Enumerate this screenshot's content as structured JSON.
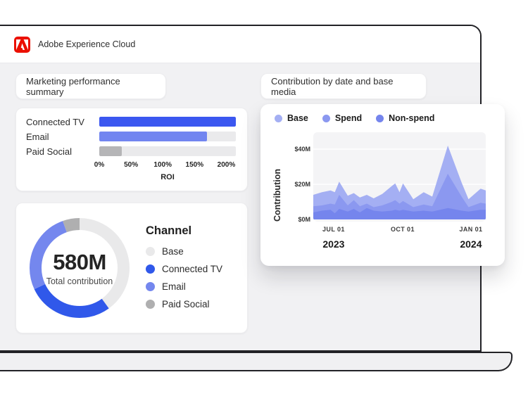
{
  "app": {
    "title": "Adobe Experience Cloud"
  },
  "panels": {
    "left_title": "Marketing performance summary",
    "right_title": "Contribution by date and base media"
  },
  "chart_data": [
    {
      "id": "roi-by-channel",
      "type": "bar",
      "orientation": "horizontal",
      "categories": [
        "Connected TV",
        "Email",
        "Paid Social"
      ],
      "values": [
        215,
        170,
        35
      ],
      "value_unit": "% ROI",
      "xlabel": "ROI",
      "xlim": [
        0,
        215
      ],
      "x_tick_values": [
        0,
        50,
        100,
        150,
        200
      ],
      "x_tick_labels": [
        "0%",
        "50%",
        "100%",
        "150%",
        "200%"
      ],
      "bar_colors": [
        "#3B57F0",
        "#7285F0",
        "#B5B5B7"
      ],
      "track_color": "#EAEAEC",
      "grid": false
    },
    {
      "id": "total-contribution-donut",
      "type": "pie",
      "title": "Channel",
      "center_value": "580M",
      "center_label": "Total contribution",
      "legend_position": "right",
      "slices": [
        {
          "label": "Base",
          "percent": 40.0,
          "color": "#E9E9EA"
        },
        {
          "label": "Connected TV",
          "percent": 28.0,
          "color": "#3058EA"
        },
        {
          "label": "Email",
          "percent": 26.5,
          "color": "#7487EE"
        },
        {
          "label": "Paid Social",
          "percent": 5.5,
          "color": "#AFAFB0"
        }
      ]
    },
    {
      "id": "contribution-by-date",
      "type": "area",
      "stacked": true,
      "ylabel": "Contribution",
      "ylim": [
        0,
        48
      ],
      "y_tick_values": [
        0,
        20,
        40
      ],
      "y_tick_labels": [
        "$0M",
        "$20M",
        "$40M"
      ],
      "x_ticks": [
        {
          "label": "JUL 01",
          "pos": 0.118
        },
        {
          "label": "OCT 01",
          "pos": 0.518
        },
        {
          "label": "JAN 01",
          "pos": 0.914
        }
      ],
      "year_labels": [
        {
          "label": "2023",
          "pos": 0.118
        },
        {
          "label": "2024",
          "pos": 0.914
        }
      ],
      "grid": true,
      "legend_position": "top-left",
      "x": [
        0,
        0.05,
        0.1,
        0.125,
        0.15,
        0.2,
        0.235,
        0.27,
        0.31,
        0.35,
        0.4,
        0.455,
        0.475,
        0.5,
        0.52,
        0.58,
        0.64,
        0.69,
        0.78,
        0.86,
        0.9,
        0.97,
        1.0
      ],
      "series": [
        {
          "name": "Non-spend",
          "color": "#7585ED",
          "values": [
            4,
            5,
            5.5,
            3.5,
            6,
            4.5,
            6,
            4,
            6.5,
            5,
            4.5,
            5,
            5.5,
            5,
            5.5,
            4.5,
            5,
            4.5,
            6.5,
            5,
            4.5,
            5.5,
            5.5
          ]
        },
        {
          "name": "Spend",
          "color": "#8B98F0",
          "values": [
            3.5,
            3,
            3.5,
            5,
            8,
            3.5,
            5,
            3.5,
            2.5,
            2,
            3.5,
            5,
            5.5,
            4,
            5,
            2.5,
            3.5,
            3,
            19.5,
            8,
            2.5,
            4,
            3.5
          ]
        },
        {
          "name": "Base",
          "color": "#A4AFF3",
          "values": [
            6.5,
            7.5,
            7.5,
            7,
            7.5,
            5.5,
            4,
            5,
            5,
            5,
            6.5,
            9,
            9.5,
            6.5,
            10,
            4.5,
            7,
            5.5,
            16,
            8,
            4.5,
            8,
            7.5
          ]
        }
      ],
      "series_unit": "$M",
      "legend_order": [
        "Base",
        "Spend",
        "Non-spend"
      ]
    }
  ]
}
